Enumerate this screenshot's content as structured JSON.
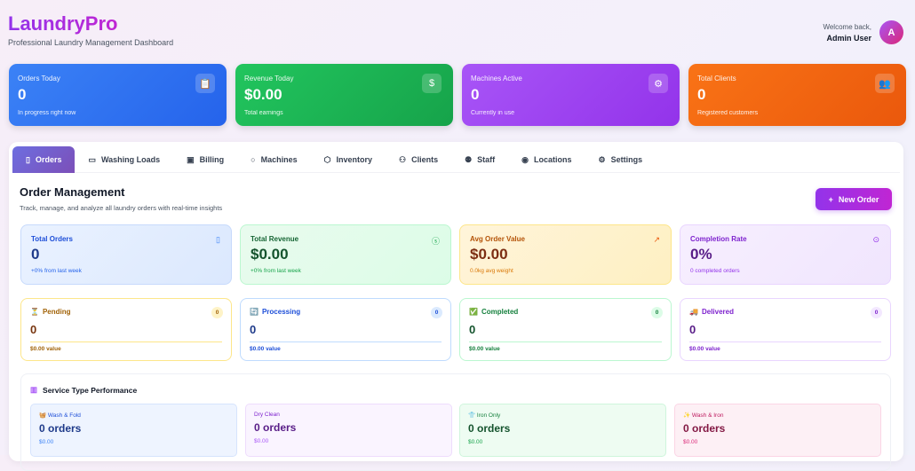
{
  "header": {
    "title": "LaundryPro",
    "subtitle": "Professional Laundry Management Dashboard",
    "welcome": "Welcome back,",
    "user": "Admin User",
    "avatar": "A"
  },
  "stats": [
    {
      "label": "Orders Today",
      "value": "0",
      "sub": "In progress right now",
      "icon": "clipboard-icon",
      "color": "#2f6cf0"
    },
    {
      "label": "Revenue Today",
      "value": "$0.00",
      "sub": "Total earnings",
      "icon": "dollar-icon",
      "color": "#1fb352"
    },
    {
      "label": "Machines Active",
      "value": "0",
      "sub": "Currently in use",
      "icon": "gear-icon",
      "color": "#9b3ef0"
    },
    {
      "label": "Total Clients",
      "value": "0",
      "sub": "Registered customers",
      "icon": "users-icon",
      "color": "#f26a12"
    }
  ],
  "tabs": [
    {
      "label": "Orders",
      "icon": "clipboard-icon"
    },
    {
      "label": "Washing Loads",
      "icon": "basket-icon"
    },
    {
      "label": "Billing",
      "icon": "receipt-icon"
    },
    {
      "label": "Machines",
      "icon": "gear-icon"
    },
    {
      "label": "Inventory",
      "icon": "box-icon"
    },
    {
      "label": "Clients",
      "icon": "users-icon"
    },
    {
      "label": "Staff",
      "icon": "staff-icon"
    },
    {
      "label": "Locations",
      "icon": "pin-icon"
    },
    {
      "label": "Settings",
      "icon": "settings-icon"
    }
  ],
  "section": {
    "title": "Order Management",
    "subtitle": "Track, manage, and analyze all laundry orders with real-time insights",
    "new_order": "New Order"
  },
  "metrics": [
    {
      "label": "Total Orders",
      "value": "0",
      "sub": "+0% from last week"
    },
    {
      "label": "Total Revenue",
      "value": "$0.00",
      "sub": "+0% from last week"
    },
    {
      "label": "Avg Order Value",
      "value": "$0.00",
      "sub": "0.0kg avg weight"
    },
    {
      "label": "Completion Rate",
      "value": "0%",
      "sub": "0 completed orders"
    }
  ],
  "statuses": [
    {
      "label": "Pending",
      "count": "0",
      "value": "0",
      "sub": "$0.00 value",
      "emoji": "⏳"
    },
    {
      "label": "Processing",
      "count": "0",
      "value": "0",
      "sub": "$0.00 value",
      "emoji": "🔄"
    },
    {
      "label": "Completed",
      "count": "0",
      "value": "0",
      "sub": "$0.00 value",
      "emoji": "✅"
    },
    {
      "label": "Delivered",
      "count": "0",
      "value": "0",
      "sub": "$0.00 value",
      "emoji": "🚚"
    }
  ],
  "services": {
    "title": "Service Type Performance",
    "items": [
      {
        "label": "Wash & Fold",
        "value": "0 orders",
        "sub": "$0.00",
        "emoji": "🧺"
      },
      {
        "label": "Dry Clean",
        "value": "0 orders",
        "sub": "$0.00",
        "emoji": ""
      },
      {
        "label": "Iron Only",
        "value": "0 orders",
        "sub": "$0.00",
        "emoji": "👕"
      },
      {
        "label": "Wash & Iron",
        "value": "0 orders",
        "sub": "$0.00",
        "emoji": "✨"
      }
    ]
  }
}
